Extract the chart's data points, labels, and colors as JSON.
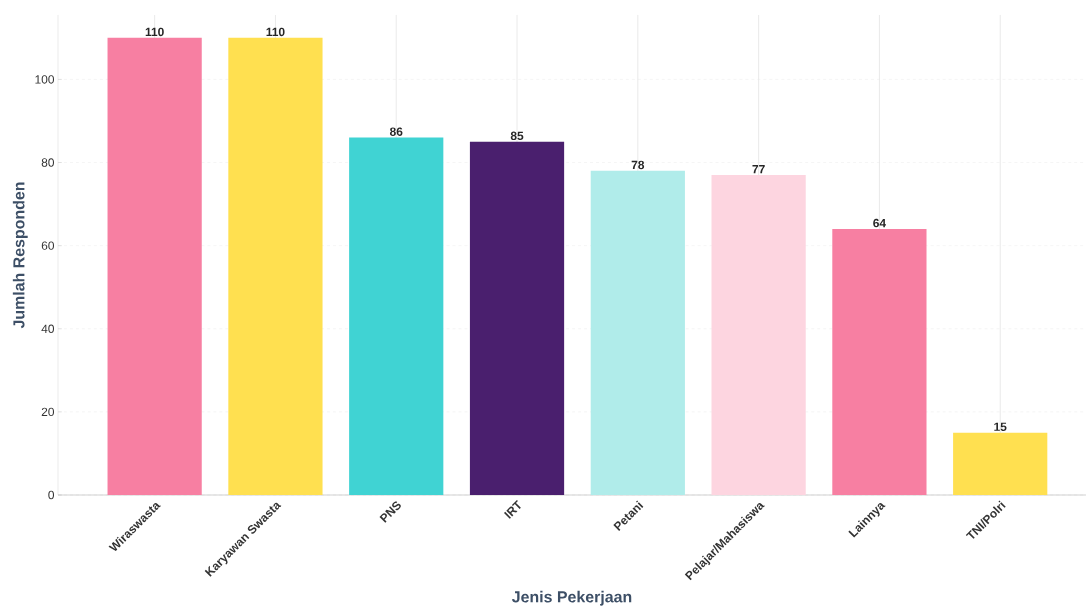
{
  "chart_data": {
    "type": "bar",
    "xlabel": "Jenis Pekerjaan",
    "ylabel": "Jumlah Responden",
    "categories": [
      "Wiraswasta",
      "Karyawan Swasta",
      "PNS",
      "IRT",
      "Petani",
      "Pelajar/Mahasiswa",
      "Lainnya",
      "TNI/Polri"
    ],
    "values": [
      110,
      110,
      86,
      85,
      78,
      77,
      64,
      15
    ],
    "colors": [
      "#f77fa2",
      "#ffe050",
      "#40d3d3",
      "#4a1f6e",
      "#b0ecea",
      "#fdd5e0",
      "#f77fa2",
      "#ffe050"
    ],
    "ylim": [
      0,
      115.5
    ],
    "yticks": [
      0,
      20,
      40,
      60,
      80,
      100
    ],
    "grid": true,
    "data_labels": true
  }
}
